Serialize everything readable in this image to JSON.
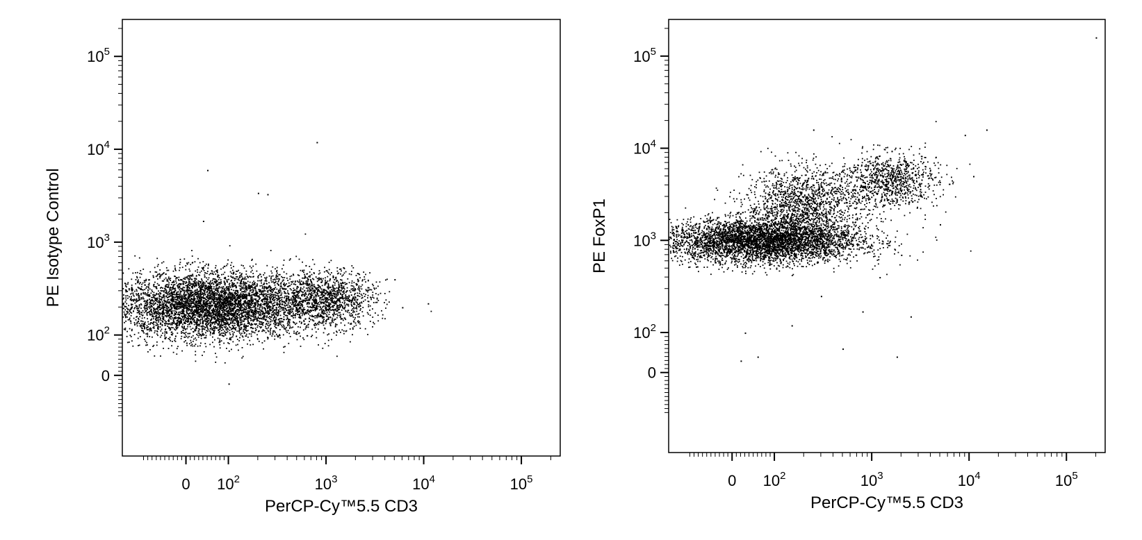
{
  "chart_data": [
    {
      "type": "scatter",
      "xlabel": "PerCP-Cy™5.5 CD3",
      "ylabel": "PE Isotype Control",
      "x_scale": "biexponential",
      "y_scale": "biexponential",
      "xlim": [
        -150,
        250000
      ],
      "ylim": [
        -200,
        250000
      ],
      "x_ticks": [
        {
          "value": 0,
          "base": "0",
          "exp": ""
        },
        {
          "value": 100,
          "base": "10",
          "exp": "2"
        },
        {
          "value": 1000,
          "base": "10",
          "exp": "3"
        },
        {
          "value": 10000,
          "base": "10",
          "exp": "4"
        },
        {
          "value": 100000,
          "base": "10",
          "exp": "5"
        }
      ],
      "y_ticks": [
        {
          "value": 0,
          "base": "0",
          "exp": ""
        },
        {
          "value": 100,
          "base": "10",
          "exp": "2"
        },
        {
          "value": 1000,
          "base": "10",
          "exp": "3"
        },
        {
          "value": 10000,
          "base": "10",
          "exp": "4"
        },
        {
          "value": 100000,
          "base": "10",
          "exp": "5"
        }
      ],
      "grid": false,
      "point_color": "#000000",
      "populations": [
        {
          "x_center": 60,
          "y_center": 210,
          "x_spread": 0.5,
          "y_spread": 0.18,
          "count": 5200
        },
        {
          "x_center": 1000,
          "y_center": 250,
          "x_spread": 0.25,
          "y_spread": 0.15,
          "count": 1200
        }
      ],
      "outliers": [
        {
          "x": 800,
          "y": 12000
        },
        {
          "x": 50,
          "y": 6000
        },
        {
          "x": 200,
          "y": 3400
        },
        {
          "x": 250,
          "y": 3300
        },
        {
          "x": 40,
          "y": 1700
        },
        {
          "x": 5000,
          "y": 400
        },
        {
          "x": 6000,
          "y": 200
        },
        {
          "x": 11000,
          "y": 220
        },
        {
          "x": 100,
          "y": -20
        }
      ]
    },
    {
      "type": "scatter",
      "xlabel": "PerCP-Cy™5.5 CD3",
      "ylabel": "PE FoxP1",
      "x_scale": "biexponential",
      "y_scale": "biexponential",
      "xlim": [
        -150,
        250000
      ],
      "ylim": [
        -200,
        250000
      ],
      "x_ticks": [
        {
          "value": 0,
          "base": "0",
          "exp": ""
        },
        {
          "value": 100,
          "base": "10",
          "exp": "2"
        },
        {
          "value": 1000,
          "base": "10",
          "exp": "3"
        },
        {
          "value": 10000,
          "base": "10",
          "exp": "4"
        },
        {
          "value": 100000,
          "base": "10",
          "exp": "5"
        }
      ],
      "y_ticks": [
        {
          "value": 0,
          "base": "0",
          "exp": ""
        },
        {
          "value": 100,
          "base": "10",
          "exp": "2"
        },
        {
          "value": 1000,
          "base": "10",
          "exp": "3"
        },
        {
          "value": 10000,
          "base": "10",
          "exp": "4"
        },
        {
          "value": 100000,
          "base": "10",
          "exp": "5"
        }
      ],
      "grid": false,
      "point_color": "#000000",
      "populations": [
        {
          "x_center": 70,
          "y_center": 1000,
          "x_spread": 0.5,
          "y_spread": 0.12,
          "count": 4500
        },
        {
          "x_center": 200,
          "y_center": 2500,
          "x_spread": 0.3,
          "y_spread": 0.2,
          "count": 1400
        },
        {
          "x_center": 1500,
          "y_center": 4500,
          "x_spread": 0.25,
          "y_spread": 0.15,
          "count": 900
        }
      ],
      "outliers": [
        {
          "x": 200000,
          "y": 160000
        },
        {
          "x": 15000,
          "y": 16000
        },
        {
          "x": 9000,
          "y": 14000
        },
        {
          "x": 11000,
          "y": 5000
        },
        {
          "x": 5000,
          "y": 1500
        },
        {
          "x": 250,
          "y": 16000
        },
        {
          "x": 30,
          "y": 100
        },
        {
          "x": 20,
          "y": 30
        },
        {
          "x": 60,
          "y": 40
        },
        {
          "x": 500,
          "y": 60
        },
        {
          "x": 1800,
          "y": 40
        },
        {
          "x": 2500,
          "y": 150
        },
        {
          "x": 800,
          "y": 170
        },
        {
          "x": 300,
          "y": 250
        },
        {
          "x": 150,
          "y": 120
        },
        {
          "x": 1200,
          "y": 400
        },
        {
          "x": 2000,
          "y": 700
        }
      ]
    }
  ]
}
